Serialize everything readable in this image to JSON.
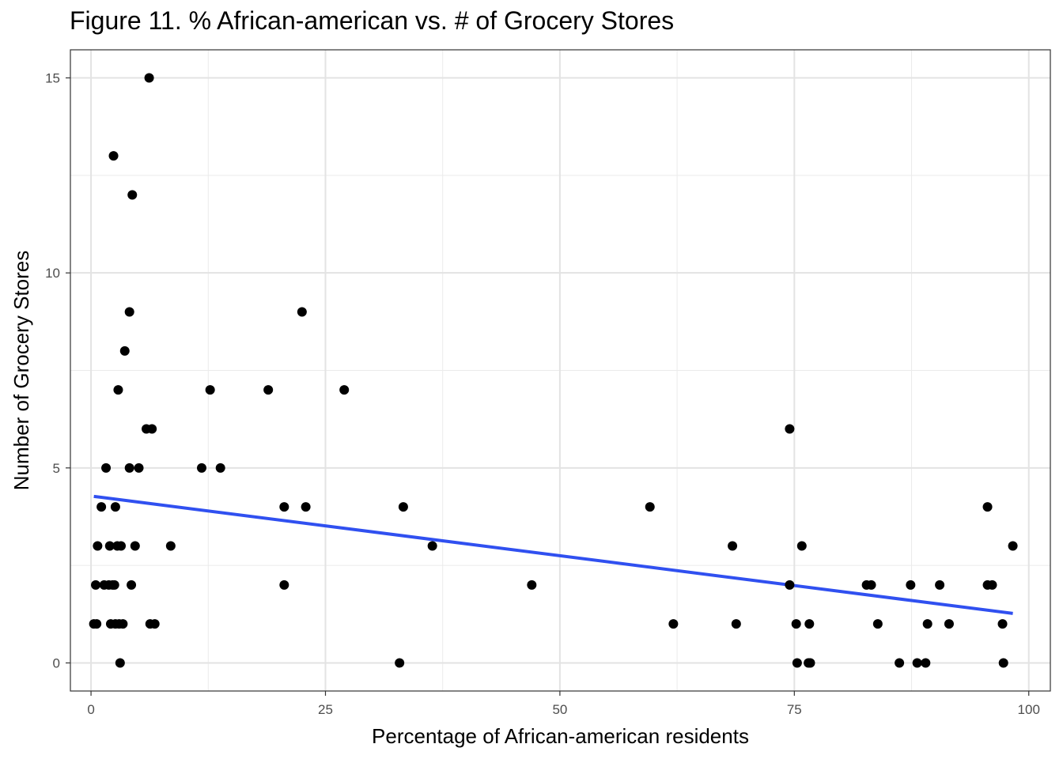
{
  "chart_data": {
    "type": "scatter",
    "title": "Figure 11. % African-american vs. # of Grocery Stores",
    "xlabel": "Percentage of African-american residents",
    "ylabel": "Number of Grocery Stores",
    "xlim": [
      -2.2,
      102.3
    ],
    "ylim": [
      -0.72,
      15.72
    ],
    "x_ticks": [
      0,
      25,
      50,
      75,
      100
    ],
    "x_tick_labels": [
      "0",
      "25",
      "50",
      "75",
      "100"
    ],
    "y_ticks": [
      0,
      5,
      10,
      15
    ],
    "y_tick_labels": [
      "0",
      "5",
      "10",
      "15"
    ],
    "grid": true,
    "point_color": "#000000",
    "trend_color": "#3050f0",
    "series": [
      {
        "points": [
          [
            6.2,
            15
          ],
          [
            2.4,
            13
          ],
          [
            4.4,
            12
          ],
          [
            4.1,
            9
          ],
          [
            22.5,
            9
          ],
          [
            3.6,
            8
          ],
          [
            2.9,
            7
          ],
          [
            12.7,
            7
          ],
          [
            18.9,
            7
          ],
          [
            27.0,
            7
          ],
          [
            5.9,
            6
          ],
          [
            6.5,
            6
          ],
          [
            74.5,
            6
          ],
          [
            1.6,
            5
          ],
          [
            4.1,
            5
          ],
          [
            5.1,
            5
          ],
          [
            11.8,
            5
          ],
          [
            13.8,
            5
          ],
          [
            1.1,
            4
          ],
          [
            2.6,
            4
          ],
          [
            20.6,
            4
          ],
          [
            22.9,
            4
          ],
          [
            33.3,
            4
          ],
          [
            59.6,
            4
          ],
          [
            95.6,
            4
          ],
          [
            0.7,
            3
          ],
          [
            2.0,
            3
          ],
          [
            2.8,
            3
          ],
          [
            3.2,
            3
          ],
          [
            4.7,
            3
          ],
          [
            8.5,
            3
          ],
          [
            36.4,
            3
          ],
          [
            68.4,
            3
          ],
          [
            75.8,
            3
          ],
          [
            98.3,
            3
          ],
          [
            0.5,
            2
          ],
          [
            1.4,
            2
          ],
          [
            1.9,
            2
          ],
          [
            2.3,
            2
          ],
          [
            2.5,
            2
          ],
          [
            4.3,
            2
          ],
          [
            20.6,
            2
          ],
          [
            47.0,
            2
          ],
          [
            74.5,
            2
          ],
          [
            82.7,
            2
          ],
          [
            83.2,
            2
          ],
          [
            87.4,
            2
          ],
          [
            90.5,
            2
          ],
          [
            95.6,
            2
          ],
          [
            96.1,
            2
          ],
          [
            0.3,
            1
          ],
          [
            0.6,
            1
          ],
          [
            2.1,
            1
          ],
          [
            2.6,
            1
          ],
          [
            3.0,
            1
          ],
          [
            3.4,
            1
          ],
          [
            6.3,
            1
          ],
          [
            6.8,
            1
          ],
          [
            62.1,
            1
          ],
          [
            68.8,
            1
          ],
          [
            75.2,
            1
          ],
          [
            76.6,
            1
          ],
          [
            83.9,
            1
          ],
          [
            89.2,
            1
          ],
          [
            91.5,
            1
          ],
          [
            97.2,
            1
          ],
          [
            3.1,
            0
          ],
          [
            32.9,
            0
          ],
          [
            75.3,
            0
          ],
          [
            76.5,
            0
          ],
          [
            76.7,
            0
          ],
          [
            86.2,
            0
          ],
          [
            88.1,
            0
          ],
          [
            89.0,
            0
          ],
          [
            97.3,
            0
          ]
        ]
      }
    ],
    "trend_line": {
      "x": [
        0.3,
        98.3
      ],
      "y": [
        4.27,
        1.27
      ]
    }
  }
}
